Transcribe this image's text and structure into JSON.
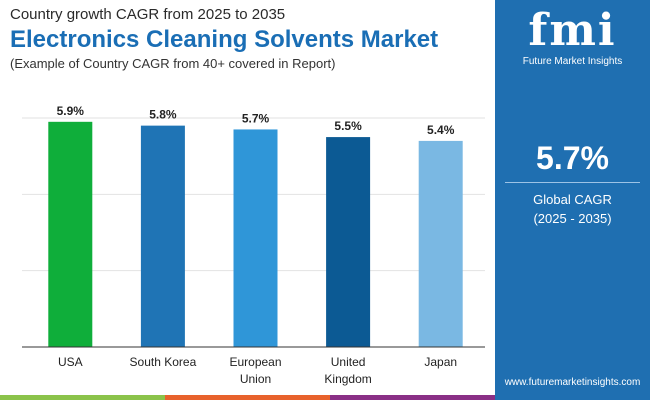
{
  "header": {
    "subtitle": "Country growth CAGR from 2025 to 2035",
    "title": "Electronics Cleaning Solvents Market",
    "note": "(Example of Country CAGR from 40+ covered in Report)"
  },
  "panel": {
    "logo": "fmi",
    "brand": "Future Market Insights",
    "value": "5.7%",
    "label": "Global CAGR",
    "period": "(2025 - 2035)",
    "url": "www.futuremarketinsights.com"
  },
  "chart_data": {
    "type": "bar",
    "categories": [
      [
        "USA"
      ],
      [
        "South Korea"
      ],
      [
        "European",
        "Union"
      ],
      [
        "United",
        "Kingdom"
      ],
      [
        "Japan"
      ]
    ],
    "values": [
      5.9,
      5.8,
      5.7,
      5.5,
      5.4
    ],
    "labels": [
      "5.9%",
      "5.8%",
      "5.7%",
      "5.5%",
      "5.4%"
    ],
    "colors": [
      "#0fae3a",
      "#1f74b5",
      "#2f96d8",
      "#0c5a94",
      "#7ab8e3"
    ],
    "ylim": [
      0,
      6
    ],
    "grid": true,
    "xlabel": "",
    "ylabel": "",
    "title": ""
  },
  "stripes": [
    "#8bc34a",
    "#e8622c",
    "#8a2f86"
  ]
}
